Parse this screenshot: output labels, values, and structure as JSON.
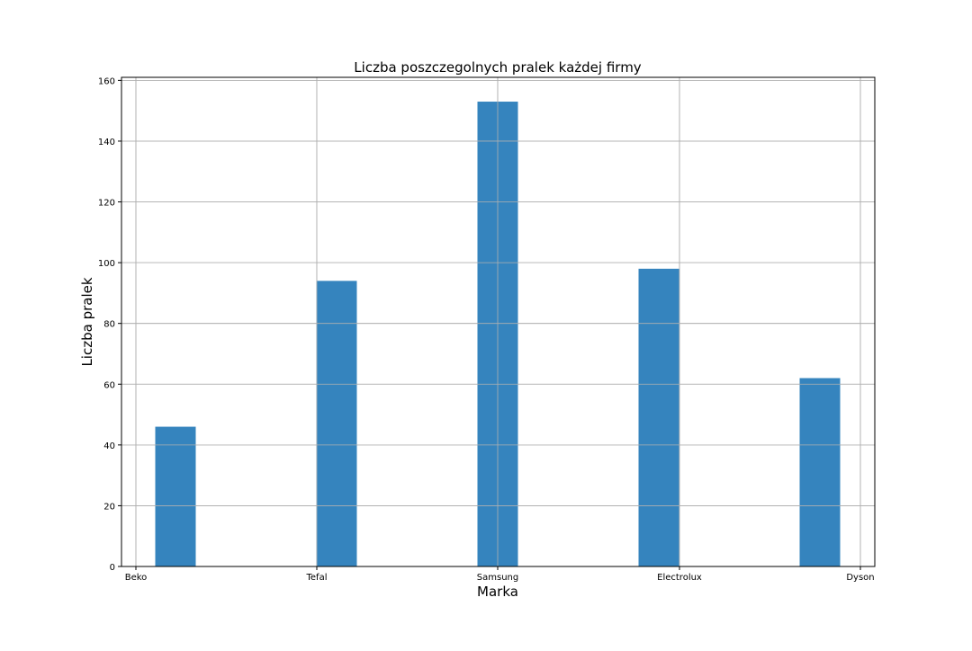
{
  "chart_data": {
    "type": "bar",
    "title": "Liczba poszczegolnych pralek każdej firmy",
    "xlabel": "Marka",
    "ylabel": "Liczba pralek",
    "x_ticks": [
      "Beko",
      "Tefal",
      "Samsung",
      "Electrolux",
      "Dyson"
    ],
    "categories": [
      "Beko",
      "Tefal",
      "Samsung",
      "Electrolux",
      "Dyson"
    ],
    "values": [
      46,
      94,
      153,
      98,
      62
    ],
    "ylim": [
      0,
      161
    ],
    "y_ticks": [
      0,
      20,
      40,
      60,
      80,
      100,
      120,
      140,
      160
    ],
    "grid": true,
    "colors": {
      "bar": "#3584be",
      "grid": "#b0b0b0",
      "axis": "#000000"
    }
  }
}
